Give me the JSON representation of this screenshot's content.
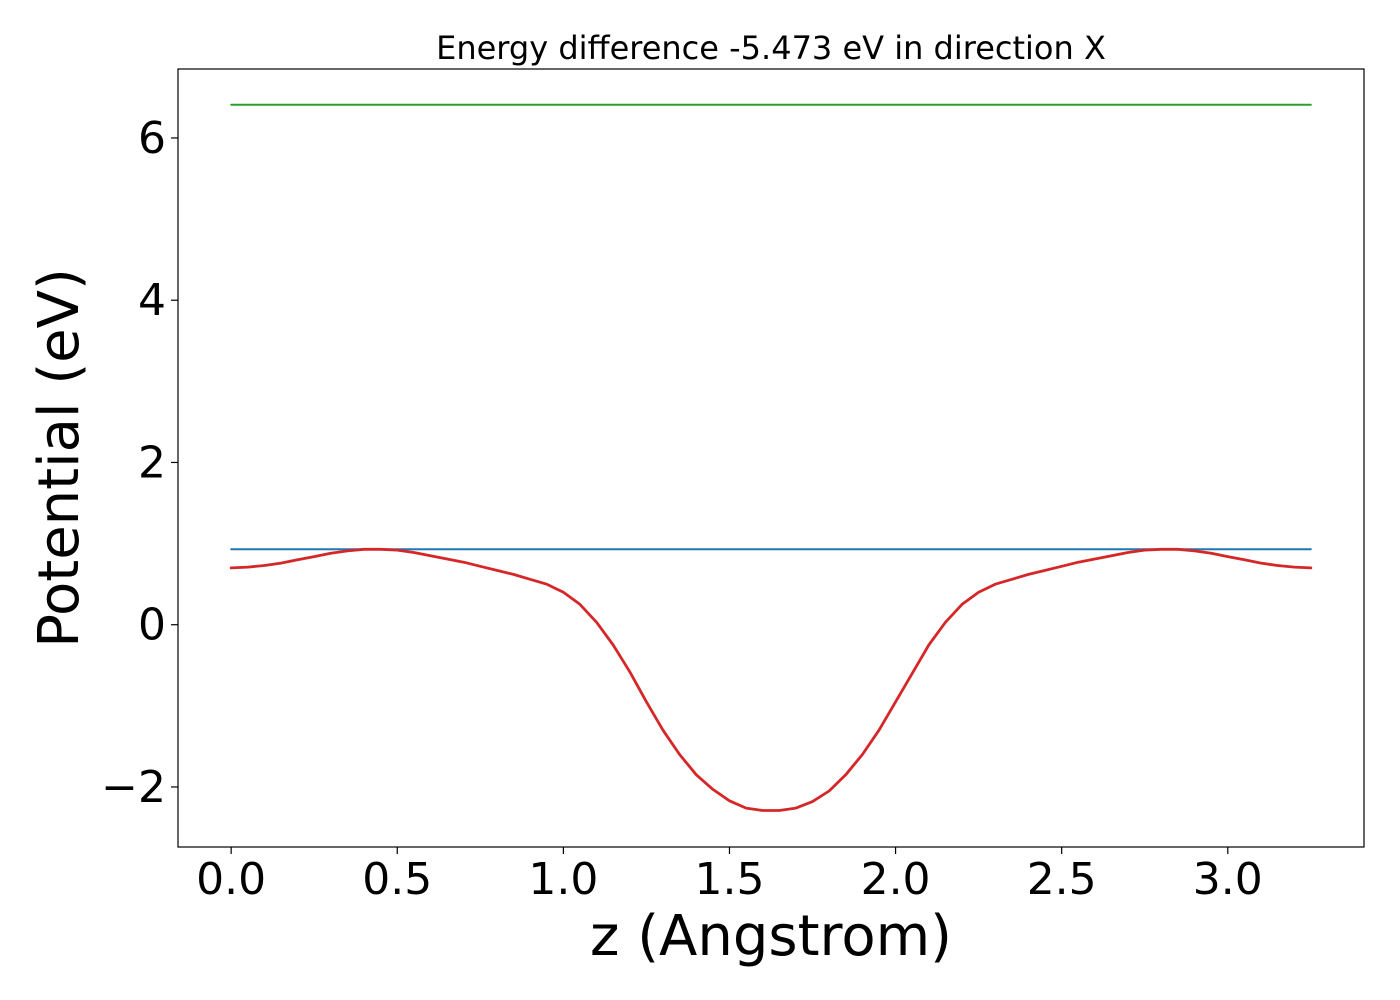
{
  "chart_data": {
    "type": "line",
    "title": "Energy difference -5.473 eV in direction X",
    "xlabel": "z (Angstrom)",
    "ylabel": "Potential (eV)",
    "xlim": [
      -0.16,
      3.41
    ],
    "ylim": [
      -2.74,
      6.85
    ],
    "xticks": [
      0.0,
      0.5,
      1.0,
      1.5,
      2.0,
      2.5,
      3.0
    ],
    "xtick_labels": [
      "0.0",
      "0.5",
      "1.0",
      "1.5",
      "2.0",
      "2.5",
      "3.0"
    ],
    "yticks": [
      -2,
      0,
      2,
      4,
      6
    ],
    "ytick_labels": [
      "−2",
      "0",
      "2",
      "4",
      "6"
    ],
    "grid": false,
    "series": [
      {
        "color": "#2ca02c",
        "x": [
          0.0,
          3.25
        ],
        "y": [
          6.41,
          6.41
        ]
      },
      {
        "color": "#1f77b4",
        "x": [
          0.0,
          3.25
        ],
        "y": [
          0.93,
          0.93
        ]
      },
      {
        "color": "#d62728",
        "x": [
          0.0,
          0.05,
          0.1,
          0.15,
          0.2,
          0.25,
          0.3,
          0.35,
          0.4,
          0.45,
          0.5,
          0.55,
          0.6,
          0.65,
          0.7,
          0.75,
          0.8,
          0.85,
          0.9,
          0.95,
          1.0,
          1.05,
          1.1,
          1.15,
          1.2,
          1.25,
          1.3,
          1.35,
          1.4,
          1.45,
          1.5,
          1.55,
          1.6,
          1.65,
          1.7,
          1.75,
          1.8,
          1.85,
          1.9,
          1.95,
          2.0,
          2.05,
          2.1,
          2.15,
          2.2,
          2.25,
          2.3,
          2.35,
          2.4,
          2.45,
          2.5,
          2.55,
          2.6,
          2.65,
          2.7,
          2.75,
          2.8,
          2.85,
          2.9,
          2.95,
          3.0,
          3.05,
          3.1,
          3.15,
          3.2,
          3.25
        ],
        "y": [
          0.7,
          0.71,
          0.73,
          0.76,
          0.8,
          0.84,
          0.88,
          0.91,
          0.93,
          0.93,
          0.92,
          0.89,
          0.85,
          0.81,
          0.77,
          0.72,
          0.67,
          0.62,
          0.56,
          0.5,
          0.4,
          0.25,
          0.03,
          -0.25,
          -0.58,
          -0.95,
          -1.3,
          -1.6,
          -1.85,
          -2.03,
          -2.17,
          -2.26,
          -2.29,
          -2.29,
          -2.26,
          -2.18,
          -2.05,
          -1.85,
          -1.6,
          -1.3,
          -0.95,
          -0.6,
          -0.25,
          0.03,
          0.25,
          0.4,
          0.5,
          0.56,
          0.62,
          0.67,
          0.72,
          0.77,
          0.81,
          0.85,
          0.89,
          0.92,
          0.93,
          0.93,
          0.91,
          0.88,
          0.84,
          0.8,
          0.76,
          0.73,
          0.71,
          0.7
        ]
      }
    ]
  }
}
